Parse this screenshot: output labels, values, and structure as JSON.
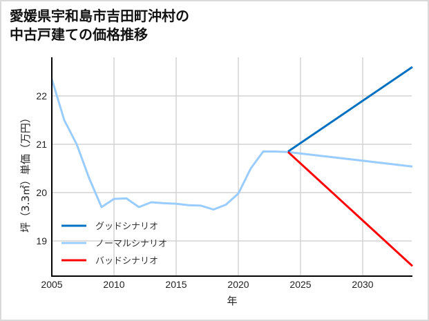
{
  "title_line1": "愛媛県宇和島市吉田町沖村の",
  "title_line2": "中古戸建ての価格推移",
  "chart_data": {
    "type": "line",
    "title": "愛媛県宇和島市吉田町沖村の中古戸建ての価格推移",
    "xlabel": "年",
    "ylabel": "坪（3.3㎡）単価（万円）",
    "xlim": [
      2005,
      2034
    ],
    "ylim": [
      18.3,
      22.8
    ],
    "x_ticks": [
      2005,
      2010,
      2015,
      2020,
      2025,
      2030
    ],
    "y_ticks": [
      19,
      20,
      21,
      22
    ],
    "grid": true,
    "legend_position": "lower left",
    "series": [
      {
        "name": "グッドシナリオ",
        "color": "#0070c0",
        "x": [
          2024,
          2034
        ],
        "y": [
          20.85,
          22.6
        ]
      },
      {
        "name": "ノーマルシナリオ",
        "color": "#99ccff",
        "x": [
          2005,
          2006,
          2007,
          2008,
          2009,
          2010,
          2011,
          2012,
          2013,
          2014,
          2015,
          2016,
          2017,
          2018,
          2019,
          2020,
          2021,
          2022,
          2023,
          2024,
          2034
        ],
        "y": [
          22.35,
          21.5,
          21.0,
          20.3,
          19.7,
          19.87,
          19.88,
          19.7,
          19.8,
          19.78,
          19.77,
          19.74,
          19.73,
          19.65,
          19.75,
          19.98,
          20.5,
          20.85,
          20.85,
          20.84,
          20.54
        ]
      },
      {
        "name": "バッドシナリオ",
        "color": "#ff0000",
        "x": [
          2024,
          2034
        ],
        "y": [
          20.84,
          18.48
        ]
      }
    ]
  }
}
